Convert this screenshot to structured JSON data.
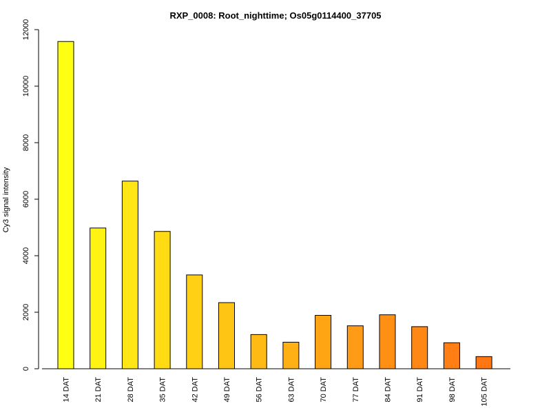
{
  "chart_data": {
    "type": "bar",
    "title": "RXP_0008: Root_nighttime; Os05g0114400_37705",
    "xlabel": "",
    "ylabel": "Cy3 signal intensity",
    "categories": [
      "14 DAT",
      "21 DAT",
      "28 DAT",
      "35 DAT",
      "42 DAT",
      "49 DAT",
      "56 DAT",
      "63 DAT",
      "70 DAT",
      "77 DAT",
      "84 DAT",
      "91 DAT",
      "98 DAT",
      "105 DAT"
    ],
    "values": [
      11580,
      4980,
      6640,
      4860,
      3320,
      2340,
      1210,
      940,
      1890,
      1520,
      1910,
      1490,
      920,
      430
    ],
    "colors": [
      "#FFFF14",
      "#FFF314",
      "#FFE614",
      "#FFDB14",
      "#FFD014",
      "#FFC514",
      "#FFBA14",
      "#FFB014",
      "#FFA514",
      "#FF9B14",
      "#FF9014",
      "#FF8714",
      "#FF7F14",
      "#FF7614"
    ],
    "ylim": [
      0,
      12000
    ],
    "yticks": [
      0,
      2000,
      4000,
      6000,
      8000,
      10000,
      12000
    ],
    "grid": false,
    "legend": "none"
  }
}
